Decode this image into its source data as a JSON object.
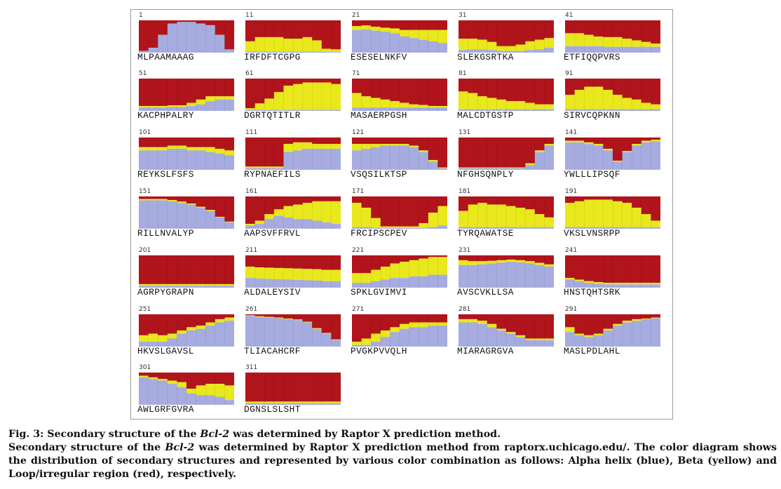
{
  "figure": {
    "legend_colors": {
      "alpha_helix": "#a6acdf",
      "beta": "#e8e81c",
      "loop": "#b1141b"
    },
    "panels": [
      {
        "start": "1",
        "seq": "MLPAAMAAAG",
        "helix": [
          0.05,
          0.15,
          0.55,
          0.9,
          0.95,
          0.95,
          0.9,
          0.85,
          0.55,
          0.1
        ],
        "beta": [
          0,
          0,
          0,
          0,
          0,
          0,
          0,
          0,
          0,
          0
        ]
      },
      {
        "start": "11",
        "seq": "IRFDFTCGPG",
        "helix": [
          0.03,
          0.03,
          0.03,
          0.03,
          0.03,
          0.03,
          0.03,
          0.03,
          0.02,
          0.02
        ],
        "beta": [
          0.32,
          0.45,
          0.45,
          0.45,
          0.4,
          0.4,
          0.45,
          0.35,
          0.1,
          0.08
        ]
      },
      {
        "start": "21",
        "seq": "ESESELNKFV",
        "helix": [
          0.7,
          0.72,
          0.68,
          0.65,
          0.6,
          0.5,
          0.45,
          0.4,
          0.35,
          0.3
        ],
        "beta": [
          0.12,
          0.12,
          0.12,
          0.12,
          0.15,
          0.2,
          0.25,
          0.3,
          0.35,
          0.4
        ]
      },
      {
        "start": "31",
        "seq": "SLEKGSRTKA",
        "helix": [
          0.08,
          0.1,
          0.1,
          0.08,
          0.05,
          0.05,
          0.05,
          0.08,
          0.1,
          0.15
        ],
        "beta": [
          0.35,
          0.33,
          0.3,
          0.25,
          0.15,
          0.15,
          0.2,
          0.27,
          0.3,
          0.3
        ]
      },
      {
        "start": "41",
        "seq": "ETFIQQPVRS",
        "helix": [
          0.2,
          0.2,
          0.2,
          0.2,
          0.18,
          0.18,
          0.18,
          0.18,
          0.18,
          0.18
        ],
        "beta": [
          0.4,
          0.4,
          0.35,
          0.3,
          0.3,
          0.3,
          0.25,
          0.2,
          0.15,
          0.1
        ]
      },
      {
        "start": "51",
        "seq": "KACPHPALRY",
        "helix": [
          0.1,
          0.1,
          0.1,
          0.12,
          0.12,
          0.15,
          0.2,
          0.3,
          0.35,
          0.35
        ],
        "beta": [
          0.05,
          0.05,
          0.05,
          0.05,
          0.05,
          0.1,
          0.15,
          0.15,
          0.1,
          0.1
        ]
      },
      {
        "start": "61",
        "seq": "DGRTQTITLR",
        "helix": [
          0.03,
          0.03,
          0.03,
          0.03,
          0.03,
          0.03,
          0.03,
          0.03,
          0.03,
          0.03
        ],
        "beta": [
          0.05,
          0.2,
          0.35,
          0.55,
          0.75,
          0.8,
          0.85,
          0.85,
          0.85,
          0.8
        ]
      },
      {
        "start": "71",
        "seq": "MASAERPGSH",
        "helix": [
          0.1,
          0.1,
          0.1,
          0.1,
          0.1,
          0.1,
          0.1,
          0.1,
          0.1,
          0.1
        ],
        "beta": [
          0.45,
          0.35,
          0.3,
          0.25,
          0.2,
          0.15,
          0.1,
          0.08,
          0.05,
          0.05
        ]
      },
      {
        "start": "81",
        "seq": "MALCDTGSTP",
        "helix": [
          0.05,
          0.05,
          0.05,
          0.05,
          0.05,
          0.05,
          0.05,
          0.05,
          0.05,
          0.05
        ],
        "beta": [
          0.55,
          0.5,
          0.4,
          0.35,
          0.3,
          0.25,
          0.25,
          0.2,
          0.15,
          0.15
        ]
      },
      {
        "start": "91",
        "seq": "SIRVCQPKNN",
        "helix": [
          0.05,
          0.05,
          0.05,
          0.05,
          0.05,
          0.05,
          0.05,
          0.05,
          0.05,
          0.05
        ],
        "beta": [
          0.45,
          0.6,
          0.7,
          0.7,
          0.6,
          0.45,
          0.35,
          0.3,
          0.2,
          0.15
        ]
      },
      {
        "start": "101",
        "seq": "REYKSLFSFS",
        "helix": [
          0.6,
          0.6,
          0.6,
          0.65,
          0.65,
          0.6,
          0.6,
          0.55,
          0.5,
          0.45
        ],
        "beta": [
          0.1,
          0.1,
          0.1,
          0.1,
          0.1,
          0.1,
          0.1,
          0.15,
          0.15,
          0.15
        ]
      },
      {
        "start": "111",
        "seq": "RYPNAEFILS",
        "helix": [
          0.05,
          0.05,
          0.05,
          0.05,
          0.55,
          0.6,
          0.65,
          0.65,
          0.65,
          0.65
        ],
        "beta": [
          0.05,
          0.05,
          0.05,
          0.05,
          0.25,
          0.25,
          0.2,
          0.15,
          0.15,
          0.15
        ]
      },
      {
        "start": "121",
        "seq": "VSQSILKTSP",
        "helix": [
          0.6,
          0.65,
          0.7,
          0.75,
          0.75,
          0.75,
          0.7,
          0.55,
          0.25,
          0.05
        ],
        "beta": [
          0.2,
          0.15,
          0.1,
          0.05,
          0.05,
          0.05,
          0.05,
          0.05,
          0.05,
          0.02
        ]
      },
      {
        "start": "131",
        "seq": "NFGHSQNPLY",
        "helix": [
          0.05,
          0.05,
          0.05,
          0.05,
          0.05,
          0.05,
          0.05,
          0.15,
          0.55,
          0.75
        ],
        "beta": [
          0.02,
          0.02,
          0.02,
          0.02,
          0.02,
          0.02,
          0.02,
          0.05,
          0.05,
          0.05
        ]
      },
      {
        "start": "141",
        "seq": "YWLLLIPSQF",
        "helix": [
          0.85,
          0.85,
          0.8,
          0.75,
          0.6,
          0.25,
          0.55,
          0.75,
          0.85,
          0.88
        ],
        "beta": [
          0.05,
          0.05,
          0.05,
          0.05,
          0.05,
          0.03,
          0.03,
          0.05,
          0.05,
          0.05
        ]
      },
      {
        "start": "151",
        "seq": "RILLNVALYP",
        "helix": [
          0.88,
          0.88,
          0.88,
          0.85,
          0.8,
          0.75,
          0.65,
          0.55,
          0.35,
          0.2
        ],
        "beta": [
          0.04,
          0.04,
          0.04,
          0.04,
          0.04,
          0.03,
          0.03,
          0.03,
          0.02,
          0.02
        ]
      },
      {
        "start": "161",
        "seq": "AAPSVFFRVL",
        "helix": [
          0.1,
          0.15,
          0.3,
          0.4,
          0.35,
          0.3,
          0.3,
          0.25,
          0.2,
          0.15
        ],
        "beta": [
          0.05,
          0.1,
          0.15,
          0.2,
          0.35,
          0.45,
          0.5,
          0.6,
          0.65,
          0.7
        ]
      },
      {
        "start": "171",
        "seq": "FRCIPSCPEV",
        "helix": [
          0.05,
          0.05,
          0.03,
          0.02,
          0.02,
          0.02,
          0.02,
          0.02,
          0.05,
          0.1
        ],
        "beta": [
          0.75,
          0.6,
          0.3,
          0.05,
          0.05,
          0.05,
          0.05,
          0.15,
          0.45,
          0.6
        ]
      },
      {
        "start": "181",
        "seq": "TYRQAWATSE",
        "helix": [
          0.05,
          0.05,
          0.05,
          0.05,
          0.05,
          0.05,
          0.05,
          0.05,
          0.05,
          0.05
        ],
        "beta": [
          0.5,
          0.7,
          0.75,
          0.7,
          0.7,
          0.65,
          0.6,
          0.55,
          0.4,
          0.3
        ]
      },
      {
        "start": "191",
        "seq": "VKSLVNSRPP",
        "helix": [
          0.05,
          0.05,
          0.05,
          0.05,
          0.05,
          0.05,
          0.05,
          0.05,
          0.05,
          0.05
        ],
        "beta": [
          0.75,
          0.8,
          0.85,
          0.85,
          0.85,
          0.8,
          0.75,
          0.6,
          0.4,
          0.2
        ]
      },
      {
        "start": "201",
        "seq": "AGRPYGRAPN",
        "helix": [
          0.06,
          0.06,
          0.06,
          0.06,
          0.06,
          0.06,
          0.06,
          0.06,
          0.06,
          0.06
        ],
        "beta": [
          0.05,
          0.05,
          0.05,
          0.05,
          0.05,
          0.05,
          0.05,
          0.05,
          0.05,
          0.05
        ]
      },
      {
        "start": "211",
        "seq": "ALDALEYSIV",
        "helix": [
          0.3,
          0.28,
          0.27,
          0.26,
          0.25,
          0.24,
          0.23,
          0.22,
          0.2,
          0.2
        ],
        "beta": [
          0.35,
          0.35,
          0.35,
          0.35,
          0.35,
          0.35,
          0.35,
          0.35,
          0.35,
          0.35
        ]
      },
      {
        "start": "221",
        "seq": "SPKLGVIMVI",
        "helix": [
          0.15,
          0.15,
          0.2,
          0.25,
          0.3,
          0.3,
          0.35,
          0.35,
          0.4,
          0.4
        ],
        "beta": [
          0.3,
          0.3,
          0.35,
          0.4,
          0.45,
          0.5,
          0.5,
          0.55,
          0.55,
          0.55
        ]
      },
      {
        "start": "231",
        "seq": "AVSCVKLLSA",
        "helix": [
          0.7,
          0.7,
          0.72,
          0.75,
          0.78,
          0.8,
          0.78,
          0.75,
          0.7,
          0.65
        ],
        "beta": [
          0.15,
          0.12,
          0.1,
          0.08,
          0.07,
          0.07,
          0.07,
          0.07,
          0.07,
          0.07
        ]
      },
      {
        "start": "241",
        "seq": "HNSTQHTSRK",
        "helix": [
          0.25,
          0.2,
          0.15,
          0.12,
          0.1,
          0.1,
          0.1,
          0.1,
          0.1,
          0.1
        ],
        "beta": [
          0.05,
          0.05,
          0.05,
          0.05,
          0.05,
          0.05,
          0.05,
          0.05,
          0.05,
          0.05
        ]
      },
      {
        "start": "251",
        "seq": "HKVSLGAVSL",
        "helix": [
          0.15,
          0.15,
          0.15,
          0.25,
          0.4,
          0.5,
          0.55,
          0.65,
          0.75,
          0.8
        ],
        "beta": [
          0.2,
          0.25,
          0.2,
          0.15,
          0.1,
          0.1,
          0.1,
          0.1,
          0.1,
          0.1
        ]
      },
      {
        "start": "261",
        "seq": "TLIACAHCRF",
        "helix": [
          0.95,
          0.92,
          0.9,
          0.88,
          0.85,
          0.82,
          0.75,
          0.55,
          0.4,
          0.2
        ],
        "beta": [
          0.02,
          0.02,
          0.02,
          0.02,
          0.02,
          0.02,
          0.02,
          0.02,
          0.02,
          0.02
        ]
      },
      {
        "start": "271",
        "seq": "PVGKPVVQLH",
        "helix": [
          0.05,
          0.05,
          0.15,
          0.3,
          0.45,
          0.55,
          0.6,
          0.6,
          0.65,
          0.65
        ],
        "beta": [
          0.1,
          0.2,
          0.25,
          0.2,
          0.15,
          0.15,
          0.15,
          0.15,
          0.1,
          0.1
        ]
      },
      {
        "start": "281",
        "seq": "MIARAGRGVA",
        "helix": [
          0.75,
          0.75,
          0.7,
          0.6,
          0.5,
          0.4,
          0.3,
          0.2,
          0.2,
          0.2
        ],
        "beta": [
          0.1,
          0.1,
          0.1,
          0.1,
          0.05,
          0.05,
          0.05,
          0.05,
          0.05,
          0.05
        ]
      },
      {
        "start": "291",
        "seq": "MASLPDLAHL",
        "helix": [
          0.45,
          0.35,
          0.3,
          0.35,
          0.5,
          0.65,
          0.75,
          0.8,
          0.85,
          0.88
        ],
        "beta": [
          0.15,
          0.05,
          0.05,
          0.05,
          0.05,
          0.05,
          0.05,
          0.05,
          0.02,
          0.02
        ]
      },
      {
        "start": "301",
        "seq": "AWLGRFGVRA",
        "helix": [
          0.85,
          0.8,
          0.75,
          0.65,
          0.55,
          0.35,
          0.3,
          0.3,
          0.25,
          0.15
        ],
        "beta": [
          0.05,
          0.05,
          0.05,
          0.1,
          0.15,
          0.15,
          0.3,
          0.35,
          0.4,
          0.45
        ]
      },
      {
        "start": "311",
        "seq": "DGNSLSLSHT",
        "helix": [
          0.05,
          0.05,
          0.05,
          0.05,
          0.05,
          0.05,
          0.05,
          0.05,
          0.05,
          0.05
        ],
        "beta": [
          0.05,
          0.05,
          0.05,
          0.05,
          0.05,
          0.05,
          0.05,
          0.05,
          0.05,
          0.05
        ]
      }
    ]
  },
  "caption": {
    "line1_pre": "Fig. 3: Secondary structure of the ",
    "gene": "Bcl-2",
    "line1_post": " was determined by Raptor X prediction method.",
    "p2_pre": "Secondary structure of the ",
    "p2_post": " was determined by Raptor X prediction method from raptorx.uchicago.edu/. The color diagram shows the distribution of secondary structures and represented by various color combination as follows: Alpha helix (blue), Beta (yellow) and Loop/irregular region (red), respectively."
  }
}
